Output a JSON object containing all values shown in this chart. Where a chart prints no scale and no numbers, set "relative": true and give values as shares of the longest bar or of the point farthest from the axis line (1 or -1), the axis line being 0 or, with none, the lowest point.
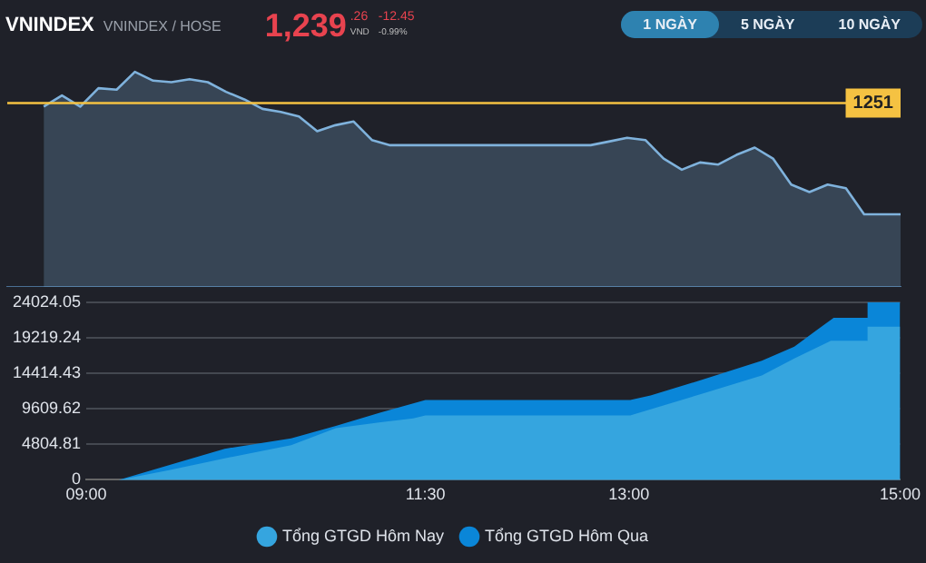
{
  "chart_data": [
    {
      "type": "area",
      "title": "VNINDEX",
      "subtitle": "VNINDEX / HOSE",
      "annotations": [
        "1,239",
        ".26",
        "VND",
        "-12.45",
        "-0.99%",
        "1 NGÀY",
        "5 NGÀY",
        "10 NGÀY",
        "1251"
      ],
      "relative": true,
      "grid": false,
      "legend": false,
      "categories": [
        null,
        null,
        null,
        null,
        null,
        null,
        null,
        null,
        null,
        null,
        null,
        null,
        null,
        null,
        null,
        null,
        null,
        null,
        null,
        null,
        null,
        null,
        null,
        null,
        null,
        null,
        null,
        null,
        null,
        null,
        null,
        null,
        null,
        null,
        null,
        null,
        null,
        null,
        null,
        null,
        null,
        null,
        null,
        null,
        null,
        null,
        null,
        null,
        null,
        null
      ],
      "series": [
        {
          "color": "#7fb2dc",
          "values": [
            null,
            null,
            0.838,
            0.89,
            0.838,
            0.924,
            0.917,
            1,
            0.959,
            0.952,
            0.966,
            0.952,
            0.907,
            0.872,
            0.828,
            0.814,
            0.793,
            0.724,
            0.752,
            0.769,
            0.683,
            0.659,
            0.659,
            0.659,
            0.659,
            0.659,
            0.659,
            0.659,
            0.659,
            0.659,
            0.659,
            0.659,
            0.659,
            0.676,
            0.693,
            0.683,
            0.597,
            0.545,
            0.579,
            0.569,
            0.614,
            0.648,
            0.597,
            0.476,
            0.441,
            0.476,
            0.459,
            0.338,
            0.338,
            0.338
          ]
        }
      ],
      "ref_lines": [
        {
          "axis": "y",
          "value": 0.855,
          "color": "#f5c242"
        }
      ]
    },
    {
      "type": "area",
      "grid": "y",
      "legend": "bottom",
      "xlim": [
        9,
        15
      ],
      "xticks": [
        {
          "value": 9,
          "label": "09:00"
        },
        {
          "value": 11.5,
          "label": "11:30"
        },
        {
          "value": 13,
          "label": "13:00"
        },
        {
          "value": 15,
          "label": "15:00"
        }
      ],
      "ylim": [
        0,
        24024.05
      ],
      "yticks": [
        0,
        4804.81,
        9609.62,
        14414.43,
        19219.24,
        24024.05
      ],
      "series": [
        {
          "name": "Tổng GTGD Hôm Nay",
          "color": "#35a5df",
          "x": [
            9,
            9.24,
            9.61,
            10.02,
            10.51,
            10.84,
            11.17,
            11.41,
            11.5,
            13.01,
            13.57,
            13.98,
            14.22,
            14.49,
            14.75,
            14.76,
            15
          ],
          "values": [
            0,
            0,
            1300,
            2900,
            4700,
            7000,
            7800,
            8300,
            8700,
            8700,
            11800,
            14100,
            16400,
            18800,
            18800,
            20700,
            20700
          ]
        },
        {
          "name": "Tổng GTGD Hôm Qua",
          "color": "#0a86d8",
          "x": [
            9,
            9.24,
            10.02,
            10.51,
            10.84,
            11.17,
            11.5,
            13.01,
            13.16,
            13.57,
            13.98,
            14.22,
            14.39,
            14.51,
            14.75,
            14.76,
            15
          ],
          "values": [
            0,
            0,
            4200,
            5600,
            7300,
            9100,
            10800,
            10800,
            11400,
            13700,
            16100,
            18000,
            20300,
            21900,
            21900,
            24024.05,
            24024.05
          ]
        }
      ]
    }
  ]
}
